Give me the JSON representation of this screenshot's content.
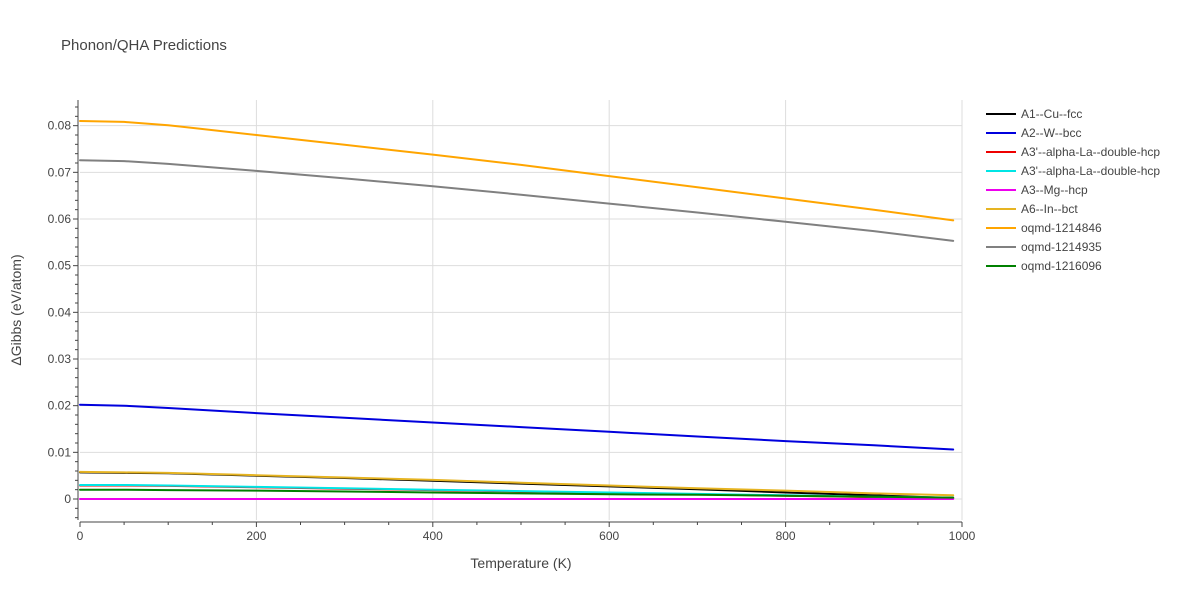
{
  "chart_data": {
    "type": "line",
    "title": "Phonon/QHA Predictions",
    "xlabel": "Temperature (K)",
    "ylabel": "ΔGibbs (eV/atom)",
    "xlim": [
      0,
      1000
    ],
    "ylim": [
      -0.0045,
      0.0855
    ],
    "x_ticks": [
      0,
      200,
      400,
      600,
      800,
      1000
    ],
    "x_tick_labels": [
      "0",
      "200",
      "400",
      "600",
      "800",
      "1000"
    ],
    "y_ticks": [
      0,
      0.01,
      0.02,
      0.03,
      0.04,
      0.05,
      0.06,
      0.07,
      0.08
    ],
    "y_tick_labels": [
      "0",
      "0.01",
      "0.02",
      "0.03",
      "0.04",
      "0.05",
      "0.06",
      "0.07",
      "0.08"
    ],
    "grid": true,
    "legend_position": "right",
    "series": [
      {
        "name": "A1--Cu--fcc",
        "color": "#000000",
        "x": [
          0,
          50,
          100,
          200,
          300,
          400,
          500,
          600,
          700,
          800,
          900,
          990
        ],
        "y": [
          0.0057,
          0.0056,
          0.0055,
          0.005,
          0.0045,
          0.0039,
          0.0033,
          0.0027,
          0.0021,
          0.0014,
          0.0008,
          0.0002
        ]
      },
      {
        "name": "A2--W--bcc",
        "color": "#0000dd",
        "x": [
          0,
          50,
          100,
          200,
          300,
          400,
          500,
          600,
          700,
          800,
          900,
          990
        ],
        "y": [
          0.0202,
          0.02,
          0.0195,
          0.0184,
          0.0174,
          0.0164,
          0.0154,
          0.0144,
          0.0134,
          0.0124,
          0.0115,
          0.0106
        ]
      },
      {
        "name": "A3'--alpha-La--double-hcp",
        "color": "#ee0000",
        "x": [
          0,
          50,
          100,
          200,
          300,
          400,
          500,
          600,
          700,
          800,
          900,
          990
        ],
        "y": [
          0.0029,
          0.0029,
          0.0028,
          0.0025,
          0.0022,
          0.0019,
          0.0016,
          0.0013,
          0.001,
          0.0007,
          0.0004,
          0.0002
        ]
      },
      {
        "name": "A3'--alpha-La--double-hcp",
        "color": "#00e5e5",
        "x": [
          0,
          50,
          100,
          200,
          300,
          400,
          500,
          600,
          700,
          800,
          900,
          990
        ],
        "y": [
          0.003,
          0.003,
          0.0029,
          0.0026,
          0.0023,
          0.002,
          0.0017,
          0.0014,
          0.0011,
          0.0008,
          0.0005,
          0.0003
        ]
      },
      {
        "name": "A3--Mg--hcp",
        "color": "#ee00ee",
        "x": [
          0,
          200,
          400,
          600,
          800,
          990
        ],
        "y": [
          0,
          0,
          0,
          0,
          0,
          0
        ]
      },
      {
        "name": "A6--In--bct",
        "color": "#e6b422",
        "x": [
          0,
          50,
          100,
          200,
          300,
          400,
          500,
          600,
          700,
          800,
          900,
          990
        ],
        "y": [
          0.0058,
          0.0057,
          0.0056,
          0.0051,
          0.0046,
          0.0041,
          0.0035,
          0.0029,
          0.0023,
          0.0018,
          0.0012,
          0.0008
        ]
      },
      {
        "name": "oqmd-1214846",
        "color": "#ffa500",
        "x": [
          0,
          50,
          100,
          200,
          300,
          400,
          500,
          600,
          700,
          800,
          900,
          990
        ],
        "y": [
          0.081,
          0.0808,
          0.0801,
          0.078,
          0.0759,
          0.0738,
          0.0716,
          0.0692,
          0.0668,
          0.0644,
          0.062,
          0.0597
        ]
      },
      {
        "name": "oqmd-1214935",
        "color": "#808080",
        "x": [
          0,
          50,
          100,
          200,
          300,
          400,
          500,
          600,
          700,
          800,
          900,
          990
        ],
        "y": [
          0.0726,
          0.0724,
          0.0718,
          0.0703,
          0.0687,
          0.067,
          0.0652,
          0.0633,
          0.0614,
          0.0594,
          0.0574,
          0.0553
        ]
      },
      {
        "name": "oqmd-1216096",
        "color": "#008000",
        "x": [
          0,
          50,
          100,
          200,
          300,
          400,
          500,
          600,
          700,
          800,
          900,
          990
        ],
        "y": [
          0.002,
          0.002,
          0.0019,
          0.0018,
          0.0016,
          0.0014,
          0.0012,
          0.001,
          0.0009,
          0.0007,
          0.0005,
          0.0003
        ]
      }
    ]
  }
}
